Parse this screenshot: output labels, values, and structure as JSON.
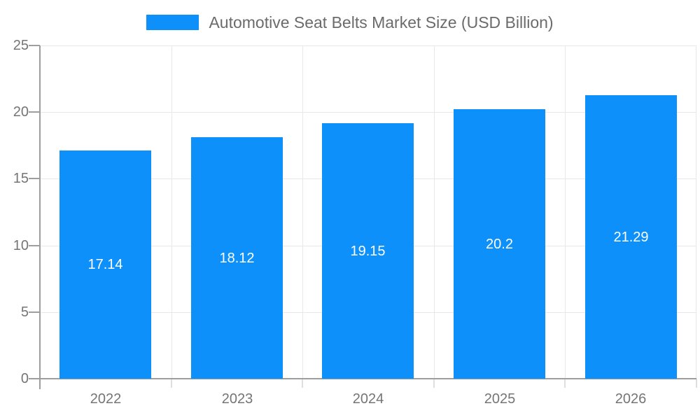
{
  "chart_data": {
    "type": "bar",
    "title": "Automotive Seat Belts Market Size (USD Billion)",
    "series_name": "Automotive Seat Belts Market Size (USD Billion)",
    "categories": [
      "2022",
      "2023",
      "2024",
      "2025",
      "2026"
    ],
    "values": [
      17.14,
      18.12,
      19.15,
      20.2,
      21.29
    ],
    "value_labels": [
      "17.14",
      "18.12",
      "19.15",
      "20.2",
      "21.29"
    ],
    "xlabel": "",
    "ylabel": "",
    "ylim": [
      0,
      25
    ],
    "yticks": [
      0,
      5,
      10,
      15,
      20,
      25
    ],
    "grid": "on",
    "legend_position": "top-center",
    "colors": {
      "bar": "#0d90fa",
      "value_label": "#ffffff",
      "grid": "#e8e8e8",
      "tick_light": "#dfdfdf",
      "axis": "#9e9e9e",
      "tick_label": "#757575",
      "title": "#6b6b6b",
      "background": "#ffffff"
    }
  }
}
